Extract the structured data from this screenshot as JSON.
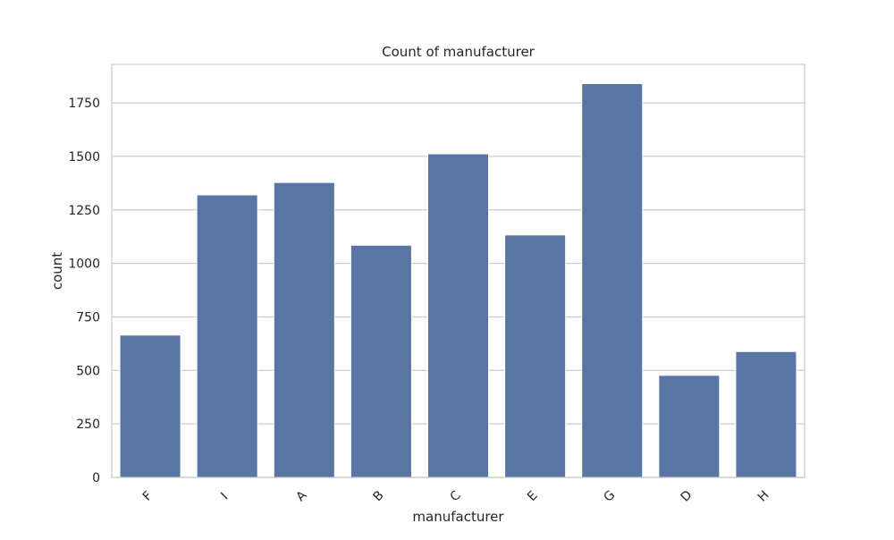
{
  "chart_data": {
    "type": "bar",
    "title": "Count of manufacturer",
    "xlabel": "manufacturer",
    "ylabel": "count",
    "categories": [
      "F",
      "I",
      "A",
      "B",
      "C",
      "E",
      "G",
      "D",
      "H"
    ],
    "values": [
      665,
      1320,
      1378,
      1085,
      1512,
      1133,
      1840,
      477,
      588
    ],
    "ylim": [
      0,
      1930
    ],
    "yticks": [
      0,
      250,
      500,
      750,
      1000,
      1250,
      1500,
      1750
    ],
    "grid": "y",
    "bar_color": "#5875a4",
    "grid_color": "#cccccc",
    "spine_color": "#cccccc",
    "text_color": "#262626",
    "x_tick_rotation_deg": -45
  }
}
